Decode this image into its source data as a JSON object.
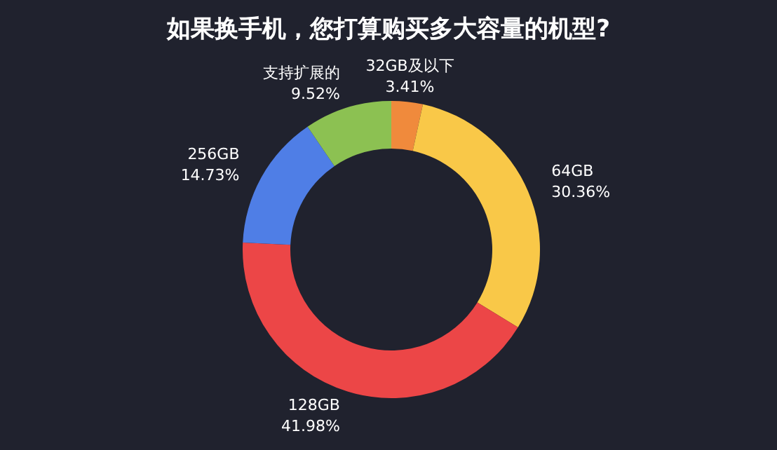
{
  "chart_data": {
    "type": "donut",
    "title": "如果换手机，您打算购买多大容量的机型?",
    "categories": [
      "32GB及以下",
      "64GB",
      "128GB",
      "256GB",
      "支持扩展的"
    ],
    "values": [
      3.41,
      30.36,
      41.98,
      14.73,
      9.52
    ],
    "value_labels": [
      "3.41%",
      "30.36%",
      "41.98%",
      "14.73%",
      "9.52%"
    ],
    "colors": [
      "#f08a3c",
      "#f9c848",
      "#ec4647",
      "#4f7ee6",
      "#8cc152"
    ]
  }
}
